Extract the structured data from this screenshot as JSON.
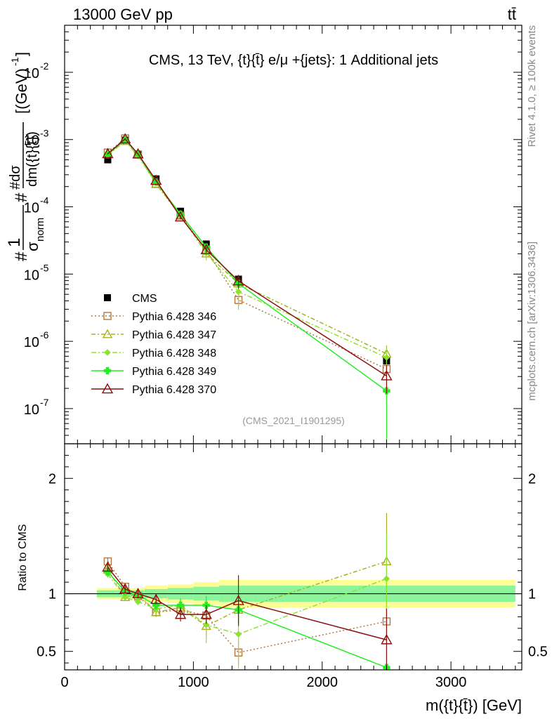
{
  "header": {
    "left": "13000 GeV pp",
    "right": "tt̄"
  },
  "side_labels": {
    "rivet": "Rivet 4.1.0, ≥ 100k events",
    "mcplots": "mcplots.cern.ch [arXiv:1306.3436]"
  },
  "chart_data": {
    "type": "scatter",
    "title": "CMS, 13 TeV, {t}{t̄} e/μ +{jets}: 1 Additional jets",
    "analysis_tag": "(CMS_2021_I1901295)",
    "xlabel": "m({t}{t̄}) [GeV]",
    "ylabel": "#1/σ_norm #dσ/dm({t}{t̄}) [(GeV)^-1]",
    "ylabel_prefix": "#",
    "ylabel_one": "1",
    "ylabel_sigma": "σ",
    "ylabel_sigma_sub": "norm",
    "ylabel_deriv_num": "#dσ",
    "ylabel_deriv_den": "dm({t}{t̄})",
    "ylabel_unit": "[(GeV)",
    "ylabel_unit_exp": "-1",
    "ylabel_unit_close": "]",
    "ratio_ylabel": "Ratio to CMS",
    "xlim": [
      0,
      3550
    ],
    "ylim_log": [
      3e-08,
      0.05
    ],
    "ratio_ylim": [
      0.34,
      2.3
    ],
    "x_ticks": [
      0,
      1000,
      2000,
      3000
    ],
    "x_tick_labels": [
      "0",
      "1000",
      "2000",
      "3000"
    ],
    "y_ticks": [
      1e-07,
      1e-06,
      1e-05,
      0.0001,
      0.001,
      0.01
    ],
    "y_tick_base": "10",
    "y_tick_exponents": [
      "-7",
      "-6",
      "-5",
      "-4",
      "-3",
      "-2"
    ],
    "ratio_ticks": [
      0.5,
      1,
      2
    ],
    "ratio_tick_labels": [
      "0.5",
      "1",
      "2"
    ],
    "bins": [
      {
        "lo": 250,
        "hi": 420,
        "x": 335
      },
      {
        "lo": 420,
        "hi": 520,
        "x": 470
      },
      {
        "lo": 520,
        "hi": 620,
        "x": 570
      },
      {
        "lo": 620,
        "hi": 800,
        "x": 710
      },
      {
        "lo": 800,
        "hi": 1000,
        "x": 900
      },
      {
        "lo": 1000,
        "hi": 1200,
        "x": 1100
      },
      {
        "lo": 1200,
        "hi": 1500,
        "x": 1350
      },
      {
        "lo": 1500,
        "hi": 3500,
        "x": 2500
      }
    ],
    "data": {
      "name": "CMS",
      "values": [
        0.0005,
        0.00098,
        0.00061,
        0.00026,
        8.6e-05,
        2.8e-05,
        8.4e-06,
        5.1e-07
      ],
      "band_stat": [
        0.03,
        0.03,
        0.03,
        0.04,
        0.05,
        0.06,
        0.07,
        0.07
      ],
      "band_total": [
        0.05,
        0.05,
        0.05,
        0.07,
        0.08,
        0.1,
        0.12,
        0.12
      ]
    },
    "series": [
      {
        "name": "Pythia 6.428 346",
        "color": "#b07840",
        "marker": "square",
        "dash": "2,3",
        "ratio": [
          1.28,
          1.06,
          0.98,
          0.84,
          0.86,
          0.81,
          0.49,
          0.76
        ],
        "ratio_err": [
          0.03,
          0.03,
          0.03,
          0.04,
          0.06,
          0.08,
          0.1,
          0.12
        ]
      },
      {
        "name": "Pythia 6.428 347",
        "color": "#a8b020",
        "marker": "triangle",
        "dash": "6,3,2,3",
        "ratio": [
          1.21,
          0.97,
          1.0,
          0.84,
          0.88,
          0.72,
          0.86,
          1.28
        ],
        "ratio_err": [
          0.03,
          0.03,
          0.03,
          0.04,
          0.06,
          0.09,
          0.1,
          0.42
        ]
      },
      {
        "name": "Pythia 6.428 348",
        "color": "#90e030",
        "marker": "diamond",
        "dash": "7,3,2,3",
        "ratio": [
          1.17,
          0.97,
          0.93,
          0.87,
          0.9,
          0.73,
          0.65,
          1.13
        ],
        "ratio_err": [
          0.03,
          0.03,
          0.03,
          0.04,
          0.06,
          0.16,
          0.3,
          0.4
        ]
      },
      {
        "name": "Pythia 6.428 349",
        "color": "#22ee22",
        "marker": "cross",
        "dash": "",
        "ratio": [
          1.19,
          1.02,
          0.99,
          0.9,
          0.9,
          0.9,
          0.86,
          0.36
        ],
        "ratio_err": [
          0.03,
          0.03,
          0.03,
          0.04,
          0.06,
          0.08,
          0.12,
          0.3
        ]
      },
      {
        "name": "Pythia 6.428 370",
        "color": "#8b1010",
        "marker": "triangle-open",
        "dash": "",
        "ratio": [
          1.23,
          1.04,
          1.0,
          0.95,
          0.82,
          0.82,
          0.94,
          0.6
        ],
        "ratio_err": [
          0.03,
          0.03,
          0.03,
          0.04,
          0.06,
          0.08,
          0.22,
          0.27
        ]
      }
    ]
  }
}
